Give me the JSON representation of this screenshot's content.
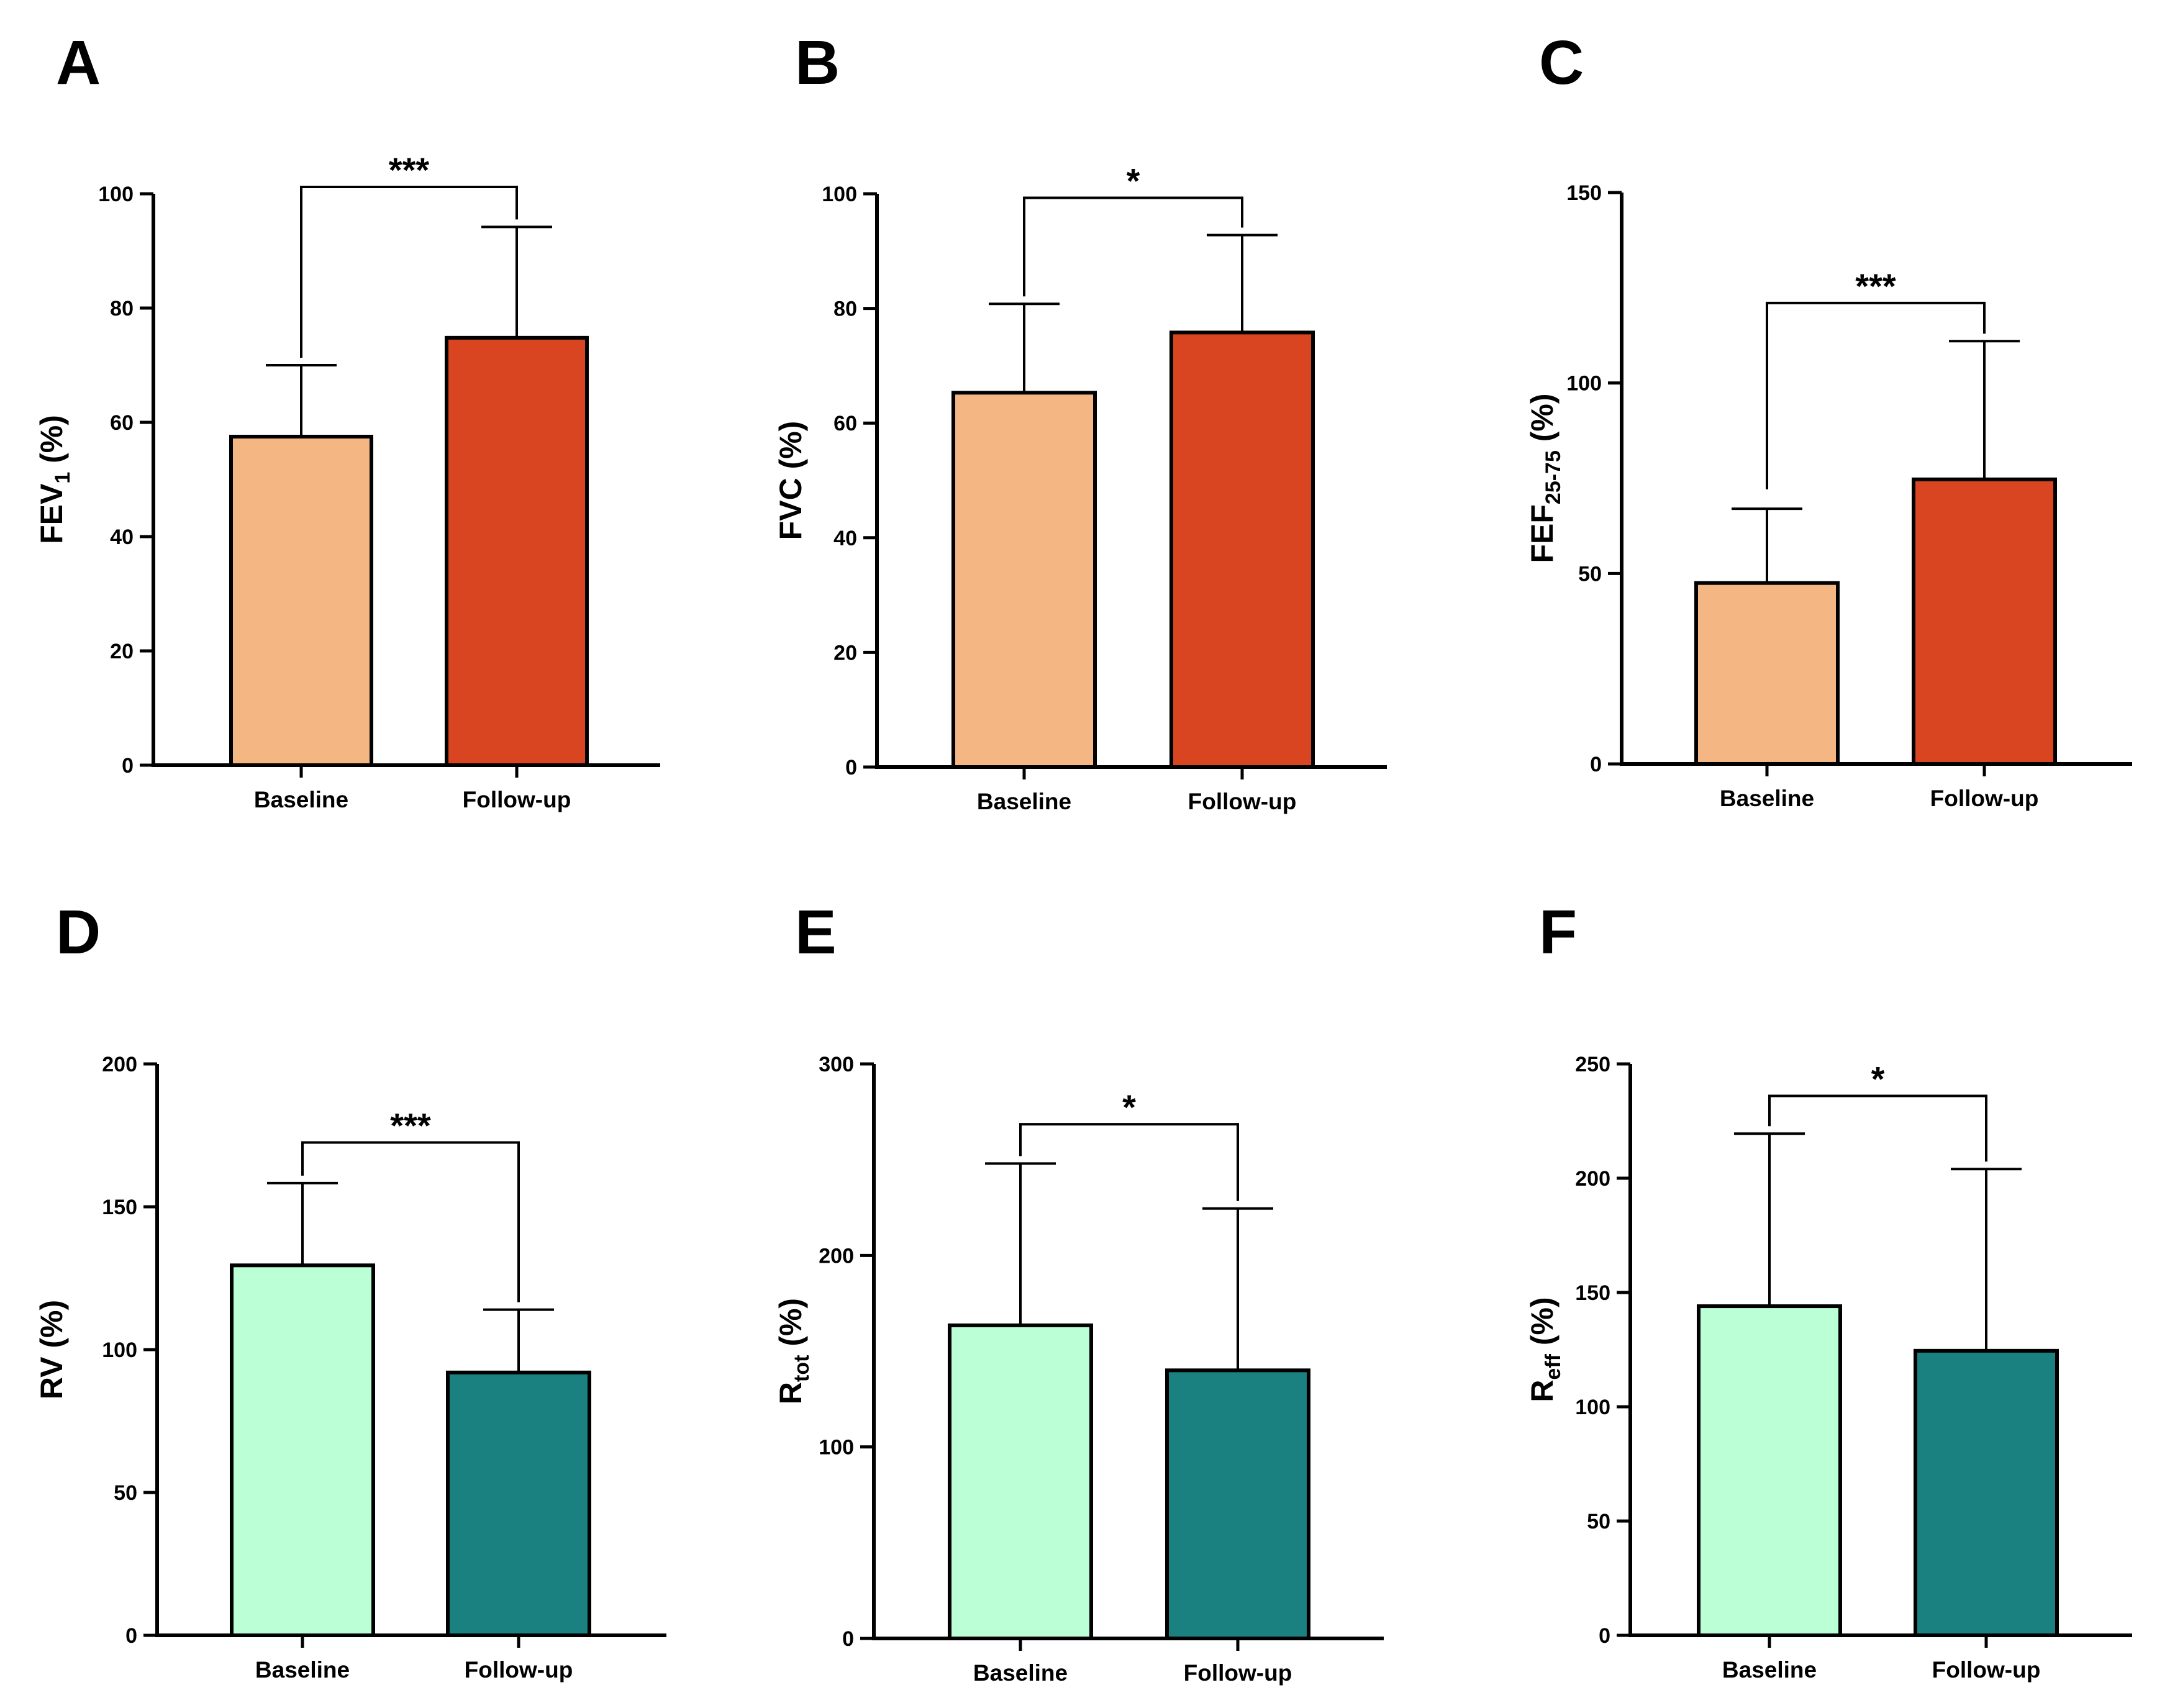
{
  "figure": {
    "colors": {
      "baseline_top": "#F4B683",
      "followup_top": "#D84520",
      "baseline_bottom": "#BAFFD6",
      "followup_bottom": "#1A8080",
      "axis": "#000000"
    }
  },
  "chart_data": [
    {
      "panel": "A",
      "type": "bar",
      "ylabel_main": "FEV",
      "ylabel_sub": "1",
      "ylabel_unit": " (%)",
      "categories": [
        "Baseline",
        "Follow-up"
      ],
      "values": [
        57.5,
        74.8
      ],
      "error_upper": [
        70.0,
        94.2
      ],
      "ylim": [
        0,
        100
      ],
      "yticks": [
        0,
        20,
        40,
        60,
        80,
        100
      ],
      "significance": "***",
      "bracket_y": 101.2,
      "colors": [
        "#F4B683",
        "#D84520"
      ]
    },
    {
      "panel": "B",
      "type": "bar",
      "ylabel_main": "FVC (%)",
      "ylabel_sub": "",
      "ylabel_unit": "",
      "categories": [
        "Baseline",
        "Follow-up"
      ],
      "values": [
        65.3,
        75.8
      ],
      "error_upper": [
        80.8,
        92.8
      ],
      "ylim": [
        0,
        100
      ],
      "yticks": [
        0,
        20,
        40,
        60,
        80,
        100
      ],
      "significance": "*",
      "bracket_y": 99.3,
      "colors": [
        "#F4B683",
        "#D84520"
      ]
    },
    {
      "panel": "C",
      "type": "bar",
      "ylabel_main": "FEF",
      "ylabel_sub": "25-75",
      "ylabel_unit": " (%)",
      "categories": [
        "Baseline",
        "Follow-up"
      ],
      "values": [
        47.5,
        74.7
      ],
      "error_upper": [
        67.0,
        111.0
      ],
      "ylim": [
        0,
        150
      ],
      "yticks": [
        0,
        50,
        100,
        150
      ],
      "significance": "***",
      "bracket_y": 121.0,
      "colors": [
        "#F4B683",
        "#D84520"
      ]
    },
    {
      "panel": "D",
      "type": "bar",
      "ylabel_main": "RV (%)",
      "ylabel_sub": "",
      "ylabel_unit": "",
      "categories": [
        "Baseline",
        "Follow-up"
      ],
      "values": [
        129.5,
        92.0
      ],
      "error_upper": [
        158.3,
        114.0
      ],
      "ylim": [
        0,
        200
      ],
      "yticks": [
        0,
        50,
        100,
        150,
        200
      ],
      "significance": "***",
      "bracket_y": 172.5,
      "colors": [
        "#BAFFD6",
        "#1A8080"
      ]
    },
    {
      "panel": "E",
      "type": "bar",
      "ylabel_main": "R",
      "ylabel_sub": "tot",
      "ylabel_unit": " (%)",
      "categories": [
        "Baseline",
        "Follow-up"
      ],
      "values": [
        163.5,
        140.0
      ],
      "error_upper": [
        248.0,
        224.5
      ],
      "ylim": [
        0,
        300
      ],
      "yticks": [
        0,
        100,
        200,
        300
      ],
      "significance": "*",
      "bracket_y": 268.5,
      "colors": [
        "#BAFFD6",
        "#1A8080"
      ]
    },
    {
      "panel": "F",
      "type": "bar",
      "ylabel_main": "R",
      "ylabel_sub": "eff",
      "ylabel_unit": " (%)",
      "categories": [
        "Baseline",
        "Follow-up"
      ],
      "values": [
        144.0,
        124.5
      ],
      "error_upper": [
        219.5,
        204.0
      ],
      "ylim": [
        0,
        250
      ],
      "yticks": [
        0,
        50,
        100,
        150,
        200,
        250
      ],
      "significance": "*",
      "bracket_y": 236.0,
      "colors": [
        "#BAFFD6",
        "#1A8080"
      ]
    }
  ]
}
